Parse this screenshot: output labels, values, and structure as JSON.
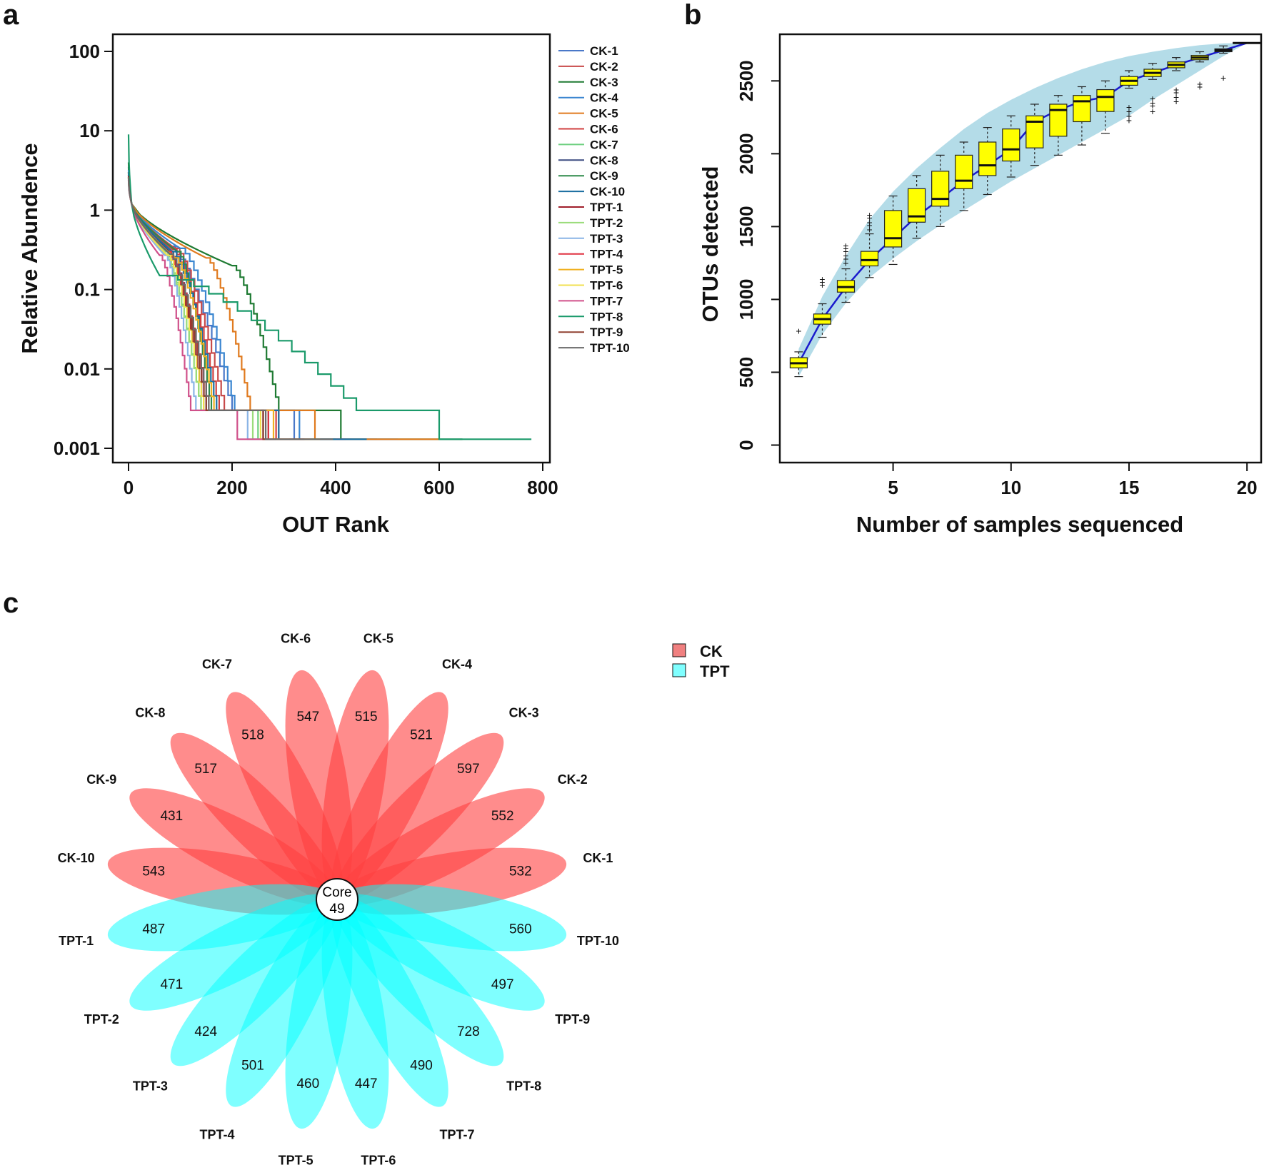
{
  "panels": {
    "a": "a",
    "b": "b",
    "c": "c"
  },
  "colors": {
    "box_fill": "#ffff00",
    "band": "#b4dce8",
    "mean_line": "#1a1acd",
    "ck_petal": "#ff4040",
    "tpt_petal": "#00ffff"
  },
  "chart_data": [
    {
      "type": "line",
      "title": "",
      "xlabel": "OUT Rank",
      "ylabel": "Relative Abundence",
      "xlim": [
        0,
        800
      ],
      "ylim": [
        0.001,
        100
      ],
      "yscale": "log",
      "xticks": [
        0,
        200,
        400,
        600,
        800
      ],
      "xtick_labels": [
        "0",
        "200",
        "400",
        "600",
        "800"
      ],
      "yticks": [
        100,
        10,
        1,
        0.1,
        0.01,
        0.001
      ],
      "ytick_labels": [
        "100",
        "10",
        "1",
        "0.1",
        "0.01",
        "0.001"
      ],
      "legend_position": "right",
      "series": [
        {
          "name": "CK-1",
          "color": "#4a78c8",
          "start": 3.5,
          "knee_rank": 80,
          "knee_abund": 0.35,
          "fall_rank": 200,
          "tail_rank": 320,
          "end_rank": 480
        },
        {
          "name": "CK-2",
          "color": "#c84a4a",
          "start": 3.0,
          "knee_rank": 90,
          "knee_abund": 0.33,
          "fall_rank": 185,
          "tail_rank": 290,
          "end_rank": 430
        },
        {
          "name": "CK-3",
          "color": "#1e7a32",
          "start": 4.0,
          "knee_rank": 200,
          "knee_abund": 0.2,
          "fall_rank": 290,
          "tail_rank": 410,
          "end_rank": 645
        },
        {
          "name": "CK-4",
          "color": "#3a86d0",
          "start": 3.2,
          "knee_rank": 100,
          "knee_abund": 0.33,
          "fall_rank": 205,
          "tail_rank": 330,
          "end_rank": 520
        },
        {
          "name": "CK-5",
          "color": "#e07a1e",
          "start": 3.0,
          "knee_rank": 150,
          "knee_abund": 0.25,
          "fall_rank": 235,
          "tail_rank": 360,
          "end_rank": 600
        },
        {
          "name": "CK-6",
          "color": "#d04040",
          "start": 2.8,
          "knee_rank": 85,
          "knee_abund": 0.32,
          "fall_rank": 175,
          "tail_rank": 285,
          "end_rank": 420
        },
        {
          "name": "CK-7",
          "color": "#6fd080",
          "start": 2.5,
          "knee_rank": 70,
          "knee_abund": 0.3,
          "fall_rank": 140,
          "tail_rank": 250,
          "end_rank": 300
        },
        {
          "name": "CK-8",
          "color": "#3a4a80",
          "start": 2.8,
          "knee_rank": 80,
          "knee_abund": 0.3,
          "fall_rank": 150,
          "tail_rank": 260,
          "end_rank": 360
        },
        {
          "name": "CK-9",
          "color": "#2e8a4a",
          "start": 3.0,
          "knee_rank": 95,
          "knee_abund": 0.3,
          "fall_rank": 160,
          "tail_rank": 270,
          "end_rank": 400
        },
        {
          "name": "CK-10",
          "color": "#1a6ea0",
          "start": 3.0,
          "knee_rank": 85,
          "knee_abund": 0.3,
          "fall_rank": 170,
          "tail_rank": 290,
          "end_rank": 460
        },
        {
          "name": "TPT-1",
          "color": "#a01e2a",
          "start": 2.7,
          "knee_rank": 80,
          "knee_abund": 0.28,
          "fall_rank": 145,
          "tail_rank": 260,
          "end_rank": 330
        },
        {
          "name": "TPT-2",
          "color": "#9adc7a",
          "start": 2.5,
          "knee_rank": 70,
          "knee_abund": 0.28,
          "fall_rank": 140,
          "tail_rank": 240,
          "end_rank": 290
        },
        {
          "name": "TPT-3",
          "color": "#8ab4e6",
          "start": 2.4,
          "knee_rank": 70,
          "knee_abund": 0.27,
          "fall_rank": 130,
          "tail_rank": 230,
          "end_rank": 265
        },
        {
          "name": "TPT-4",
          "color": "#e03040",
          "start": 2.6,
          "knee_rank": 75,
          "knee_abund": 0.3,
          "fall_rank": 155,
          "tail_rank": 270,
          "end_rank": 350
        },
        {
          "name": "TPT-5",
          "color": "#f0b020",
          "start": 2.6,
          "knee_rank": 90,
          "knee_abund": 0.25,
          "fall_rank": 165,
          "tail_rank": 280,
          "end_rank": 370
        },
        {
          "name": "TPT-6",
          "color": "#f0e050",
          "start": 2.5,
          "knee_rank": 75,
          "knee_abund": 0.27,
          "fall_rank": 145,
          "tail_rank": 255,
          "end_rank": 310
        },
        {
          "name": "TPT-7",
          "color": "#d0508a",
          "start": 2.4,
          "knee_rank": 60,
          "knee_abund": 0.27,
          "fall_rank": 120,
          "tail_rank": 210,
          "end_rank": 285
        },
        {
          "name": "TPT-8",
          "color": "#1a9a6a",
          "start": 9.0,
          "knee_rank": 60,
          "knee_abund": 0.15,
          "fall_rank": 440,
          "tail_rank": 600,
          "end_rank": 778
        },
        {
          "name": "TPT-9",
          "color": "#904030",
          "start": 2.6,
          "knee_rank": 80,
          "knee_abund": 0.28,
          "fall_rank": 150,
          "tail_rank": 260,
          "end_rank": 340
        },
        {
          "name": "TPT-10",
          "color": "#6a6a6a",
          "start": 2.6,
          "knee_rank": 80,
          "knee_abund": 0.28,
          "fall_rank": 155,
          "tail_rank": 265,
          "end_rank": 395
        }
      ]
    },
    {
      "type": "box",
      "title": "",
      "xlabel": "Number of samples sequenced",
      "ylabel": "OTUs detected",
      "xlim": [
        0.2,
        20.6
      ],
      "ylim": [
        -120,
        2820
      ],
      "xticks": [
        5,
        10,
        15,
        20
      ],
      "xtick_labels": [
        "5",
        "10",
        "15",
        "20"
      ],
      "yticks": [
        0,
        500,
        1000,
        1500,
        2000,
        2500
      ],
      "ytick_labels": [
        "0",
        "500",
        "1000",
        "1500",
        "2000",
        "2500"
      ],
      "band_lower": [
        470,
        760,
        975,
        1150,
        1280,
        1400,
        1510,
        1610,
        1710,
        1810,
        1900,
        1990,
        2080,
        2170,
        2260,
        2370,
        2470,
        2570,
        2670,
        2760
      ],
      "band_upper": [
        660,
        1020,
        1300,
        1550,
        1740,
        1900,
        2040,
        2170,
        2280,
        2370,
        2450,
        2520,
        2580,
        2630,
        2670,
        2700,
        2725,
        2745,
        2758,
        2760
      ],
      "boxes": [
        {
          "n": 1,
          "min": 470,
          "q1": 530,
          "median": 562,
          "q3": 600,
          "max": 640,
          "outliers": [
            785
          ]
        },
        {
          "n": 2,
          "min": 740,
          "q1": 830,
          "median": 865,
          "q3": 900,
          "max": 970,
          "outliers": [
            1100,
            1120,
            1140
          ]
        },
        {
          "n": 3,
          "min": 980,
          "q1": 1050,
          "median": 1085,
          "q3": 1130,
          "max": 1210,
          "outliers": [
            1250,
            1280,
            1300,
            1330,
            1350,
            1370
          ]
        },
        {
          "n": 4,
          "min": 1150,
          "q1": 1230,
          "median": 1270,
          "q3": 1330,
          "max": 1450,
          "outliers": [
            1480,
            1510,
            1530,
            1560,
            1580
          ]
        },
        {
          "n": 5,
          "min": 1240,
          "q1": 1360,
          "median": 1420,
          "q3": 1610,
          "max": 1710,
          "outliers": []
        },
        {
          "n": 6,
          "min": 1420,
          "q1": 1530,
          "median": 1570,
          "q3": 1760,
          "max": 1850,
          "outliers": []
        },
        {
          "n": 7,
          "min": 1500,
          "q1": 1640,
          "median": 1690,
          "q3": 1880,
          "max": 1990,
          "outliers": []
        },
        {
          "n": 8,
          "min": 1610,
          "q1": 1760,
          "median": 1815,
          "q3": 1990,
          "max": 2080,
          "outliers": []
        },
        {
          "n": 9,
          "min": 1720,
          "q1": 1850,
          "median": 1920,
          "q3": 2080,
          "max": 2180,
          "outliers": []
        },
        {
          "n": 10,
          "min": 1840,
          "q1": 1950,
          "median": 2030,
          "q3": 2170,
          "max": 2260,
          "outliers": []
        },
        {
          "n": 11,
          "min": 1920,
          "q1": 2040,
          "median": 2220,
          "q3": 2260,
          "max": 2340,
          "outliers": []
        },
        {
          "n": 12,
          "min": 1990,
          "q1": 2120,
          "median": 2300,
          "q3": 2340,
          "max": 2400,
          "outliers": []
        },
        {
          "n": 13,
          "min": 2060,
          "q1": 2220,
          "median": 2360,
          "q3": 2400,
          "max": 2460,
          "outliers": []
        },
        {
          "n": 14,
          "min": 2140,
          "q1": 2290,
          "median": 2390,
          "q3": 2440,
          "max": 2500,
          "outliers": []
        },
        {
          "n": 15,
          "min": 2450,
          "q1": 2470,
          "median": 2500,
          "q3": 2530,
          "max": 2570,
          "outliers": [
            2230,
            2260,
            2290,
            2320
          ]
        },
        {
          "n": 16,
          "min": 2510,
          "q1": 2530,
          "median": 2555,
          "q3": 2580,
          "max": 2620,
          "outliers": [
            2290,
            2330,
            2350,
            2380
          ]
        },
        {
          "n": 17,
          "min": 2570,
          "q1": 2590,
          "median": 2610,
          "q3": 2630,
          "max": 2660,
          "outliers": [
            2360,
            2390,
            2420,
            2440
          ]
        },
        {
          "n": 18,
          "min": 2630,
          "q1": 2645,
          "median": 2660,
          "q3": 2675,
          "max": 2700,
          "outliers": [
            2460,
            2480
          ]
        },
        {
          "n": 19,
          "min": 2690,
          "q1": 2700,
          "median": 2710,
          "q3": 2720,
          "max": 2740,
          "outliers": [
            2520
          ]
        },
        {
          "n": 20,
          "min": 2760,
          "q1": 2760,
          "median": 2760,
          "q3": 2760,
          "max": 2760,
          "outliers": []
        }
      ]
    },
    {
      "type": "flower-venn",
      "title": "",
      "core_label": "Core",
      "core_value": "49",
      "legend": [
        {
          "label": "CK",
          "color": "#f08080"
        },
        {
          "label": "TPT",
          "color": "#80ffff"
        }
      ],
      "petals": [
        {
          "label": "CK-1",
          "value": "532",
          "group": "CK"
        },
        {
          "label": "CK-2",
          "value": "552",
          "group": "CK"
        },
        {
          "label": "CK-3",
          "value": "597",
          "group": "CK"
        },
        {
          "label": "CK-4",
          "value": "521",
          "group": "CK"
        },
        {
          "label": "CK-5",
          "value": "515",
          "group": "CK"
        },
        {
          "label": "CK-6",
          "value": "547",
          "group": "CK"
        },
        {
          "label": "CK-7",
          "value": "518",
          "group": "CK"
        },
        {
          "label": "CK-8",
          "value": "517",
          "group": "CK"
        },
        {
          "label": "CK-9",
          "value": "431",
          "group": "CK"
        },
        {
          "label": "CK-10",
          "value": "543",
          "group": "CK"
        },
        {
          "label": "TPT-1",
          "value": "487",
          "group": "TPT"
        },
        {
          "label": "TPT-2",
          "value": "471",
          "group": "TPT"
        },
        {
          "label": "TPT-3",
          "value": "424",
          "group": "TPT"
        },
        {
          "label": "TPT-4",
          "value": "501",
          "group": "TPT"
        },
        {
          "label": "TPT-5",
          "value": "460",
          "group": "TPT"
        },
        {
          "label": "TPT-6",
          "value": "447",
          "group": "TPT"
        },
        {
          "label": "TPT-7",
          "value": "490",
          "group": "TPT"
        },
        {
          "label": "TPT-8",
          "value": "728",
          "group": "TPT"
        },
        {
          "label": "TPT-9",
          "value": "497",
          "group": "TPT"
        },
        {
          "label": "TPT-10",
          "value": "560",
          "group": "TPT"
        }
      ]
    }
  ]
}
